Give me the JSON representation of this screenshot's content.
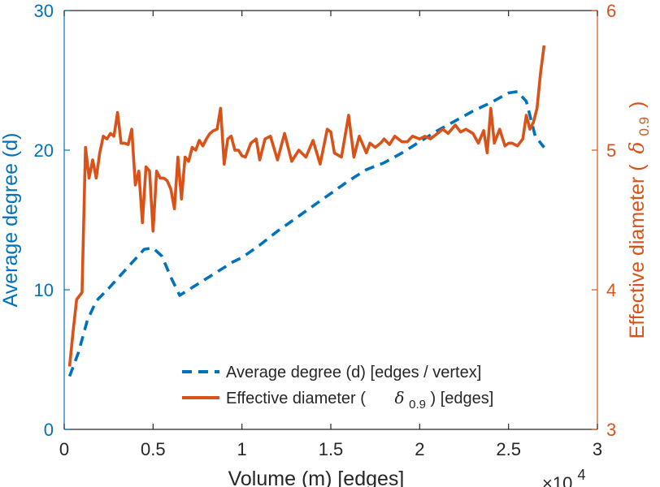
{
  "chart_data": {
    "type": "line",
    "xlabel": "Volume (m) [edges]",
    "x_multiplier": "×10",
    "x_multiplier_exp": "4",
    "xlim": [
      0,
      3
    ],
    "x_ticks": [
      0,
      0.5,
      1,
      1.5,
      2,
      2.5,
      3
    ],
    "x_tick_labels": [
      "0",
      "0.5",
      "1",
      "1.5",
      "2",
      "2.5",
      "3"
    ],
    "y_left": {
      "label": "Average degree (d)",
      "lim": [
        0,
        30
      ],
      "ticks": [
        0,
        10,
        20,
        30
      ],
      "tick_labels": [
        "0",
        "10",
        "20",
        "30"
      ],
      "color": "#0072BD"
    },
    "y_right": {
      "label": "Effective diameter (",
      "label_symbol": "δ",
      "label_sub": "0.9",
      "label_close": ")",
      "lim": [
        3,
        6
      ],
      "ticks": [
        3,
        4,
        5,
        6
      ],
      "tick_labels": [
        "3",
        "4",
        "5",
        "6"
      ],
      "color": "#D95319"
    },
    "grid": false,
    "legend_placement": "bottom-right",
    "series": [
      {
        "name": "Average degree (d) [edges / vertex]",
        "axis": "left",
        "style": "dashed",
        "color": "#0072BD",
        "x": [
          0.03,
          0.08,
          0.13,
          0.18,
          0.25,
          0.35,
          0.45,
          0.5,
          0.55,
          0.6,
          0.65,
          0.75,
          0.85,
          0.95,
          1.0,
          1.1,
          1.2,
          1.3,
          1.4,
          1.5,
          1.6,
          1.7,
          1.8,
          1.9,
          2.0,
          2.1,
          2.2,
          2.3,
          2.4,
          2.5,
          2.55,
          2.6,
          2.65,
          2.7
        ],
        "y": [
          3.8,
          5.5,
          7.8,
          9.2,
          10.1,
          11.5,
          12.9,
          13.0,
          12.4,
          10.9,
          9.6,
          10.4,
          11.2,
          12.0,
          12.3,
          13.2,
          14.2,
          15.1,
          16.0,
          16.9,
          17.8,
          18.6,
          19.1,
          19.8,
          20.6,
          21.4,
          22.1,
          22.8,
          23.4,
          24.1,
          24.2,
          23.5,
          21.0,
          20.2
        ]
      },
      {
        "name": "Effective diameter (",
        "name_symbol": "δ",
        "name_sub": "0.9",
        "name_suffix": ") [edges]",
        "axis": "right",
        "style": "solid",
        "color": "#D95319",
        "x": [
          0.03,
          0.05,
          0.07,
          0.1,
          0.12,
          0.14,
          0.16,
          0.18,
          0.2,
          0.22,
          0.24,
          0.26,
          0.28,
          0.3,
          0.32,
          0.34,
          0.36,
          0.38,
          0.4,
          0.42,
          0.44,
          0.46,
          0.48,
          0.5,
          0.52,
          0.54,
          0.56,
          0.58,
          0.6,
          0.62,
          0.64,
          0.66,
          0.68,
          0.7,
          0.72,
          0.74,
          0.76,
          0.78,
          0.8,
          0.82,
          0.84,
          0.86,
          0.88,
          0.9,
          0.92,
          0.94,
          0.96,
          0.98,
          1.0,
          1.02,
          1.05,
          1.08,
          1.1,
          1.13,
          1.16,
          1.2,
          1.24,
          1.28,
          1.32,
          1.36,
          1.4,
          1.44,
          1.48,
          1.5,
          1.52,
          1.56,
          1.6,
          1.63,
          1.66,
          1.7,
          1.72,
          1.75,
          1.78,
          1.8,
          1.83,
          1.86,
          1.9,
          1.93,
          1.96,
          2.0,
          2.03,
          2.06,
          2.1,
          2.13,
          2.16,
          2.2,
          2.23,
          2.26,
          2.3,
          2.33,
          2.36,
          2.38,
          2.4,
          2.42,
          2.45,
          2.48,
          2.5,
          2.52,
          2.55,
          2.58,
          2.6,
          2.62,
          2.64,
          2.66,
          2.68,
          2.7
        ],
        "y": [
          3.45,
          3.7,
          3.93,
          3.98,
          5.02,
          4.8,
          4.93,
          4.8,
          4.98,
          5.1,
          5.08,
          5.12,
          5.1,
          5.27,
          5.05,
          5.05,
          5.04,
          5.15,
          4.75,
          4.85,
          4.48,
          4.88,
          4.85,
          4.42,
          4.85,
          4.8,
          4.8,
          4.78,
          4.72,
          4.58,
          4.95,
          4.65,
          4.95,
          4.92,
          5.02,
          5.0,
          5.07,
          5.03,
          5.08,
          5.12,
          5.14,
          5.15,
          5.3,
          4.9,
          5.08,
          5.1,
          5.0,
          5.0,
          4.96,
          4.95,
          5.05,
          5.08,
          4.93,
          5.08,
          5.1,
          4.93,
          5.12,
          4.92,
          5.0,
          4.95,
          5.07,
          4.9,
          5.15,
          5.13,
          4.98,
          4.95,
          5.25,
          4.95,
          5.1,
          4.98,
          5.05,
          5.02,
          5.05,
          5.08,
          5.04,
          5.1,
          5.06,
          5.06,
          5.1,
          5.08,
          5.1,
          5.08,
          5.12,
          5.15,
          5.12,
          5.18,
          5.13,
          5.15,
          5.12,
          5.05,
          5.14,
          4.98,
          5.3,
          5.05,
          5.15,
          5.03,
          5.05,
          5.05,
          5.03,
          5.08,
          5.25,
          5.15,
          5.2,
          5.3,
          5.55,
          5.75
        ]
      }
    ]
  }
}
